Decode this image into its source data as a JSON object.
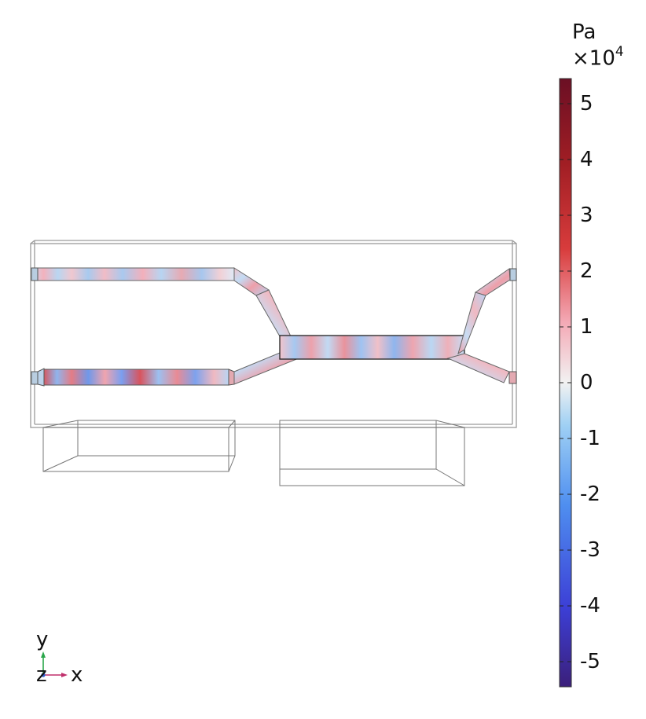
{
  "colorbar": {
    "unit": "Pa",
    "scale_prefix": "×10",
    "scale_exponent": "4",
    "ticks": [
      {
        "value": 5,
        "label": "5"
      },
      {
        "value": 4,
        "label": "4"
      },
      {
        "value": 3,
        "label": "3"
      },
      {
        "value": 2,
        "label": "2"
      },
      {
        "value": 1,
        "label": "1"
      },
      {
        "value": 0,
        "label": "0"
      },
      {
        "value": -1,
        "label": "-1"
      },
      {
        "value": -2,
        "label": "-2"
      },
      {
        "value": -3,
        "label": "-3"
      },
      {
        "value": -4,
        "label": "-4"
      },
      {
        "value": -5,
        "label": "-5"
      }
    ],
    "range": [
      -5.45,
      5.45
    ],
    "colors": [
      "#3b1f7a",
      "#3c3fd6",
      "#4f8ff0",
      "#9fd0f4",
      "#f2f2f2",
      "#f4a9b5",
      "#d83c3c",
      "#a11e24",
      "#6b0f24"
    ]
  },
  "triad": {
    "y": "y",
    "z": "z",
    "x": "x"
  }
}
